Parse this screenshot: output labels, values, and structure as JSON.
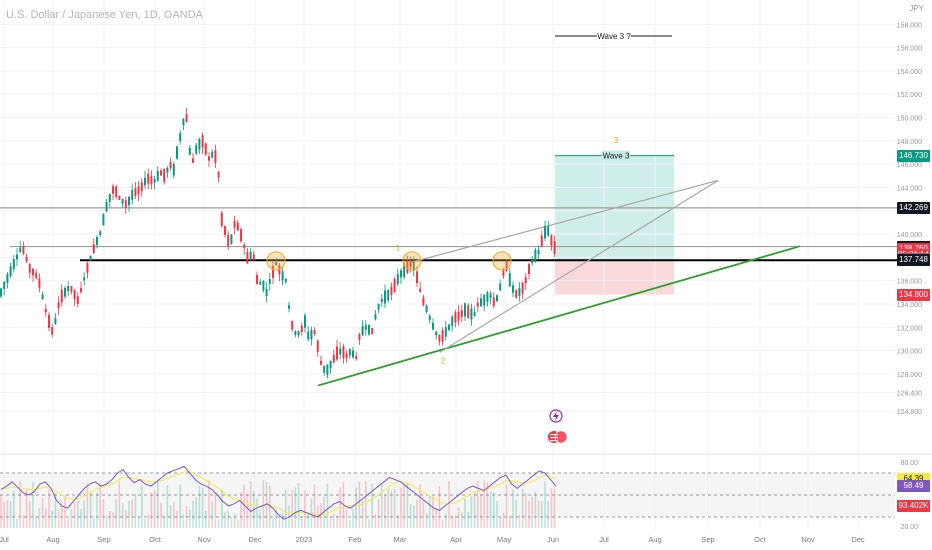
{
  "header": {
    "title": "U.S. Dollar / Japanese Yen, 1D, OANDA",
    "currency": "JPY"
  },
  "price_tags": [
    {
      "label": "146.730",
      "bg": "#089981",
      "fg": "#ffffff",
      "price": 146.73
    },
    {
      "label": "142.269",
      "bg": "#131722",
      "fg": "#ffffff",
      "price": 142.269
    },
    {
      "label": "138.929",
      "bg": "#131722",
      "fg": "#ffffff",
      "price": 138.929
    },
    {
      "label": "138.760",
      "bg": "#f23645",
      "fg": "#ffffff",
      "price": 138.76
    },
    {
      "label": "05:01:14",
      "bg": "#f23645",
      "fg": "#ffffff",
      "price": 138.2
    },
    {
      "label": "137.869",
      "bg": "#787b86",
      "fg": "#ffffff",
      "price": 137.869
    },
    {
      "label": "137.748",
      "bg": "#131722",
      "fg": "#ffffff",
      "price": 137.748
    },
    {
      "label": "134.800",
      "bg": "#f23645",
      "fg": "#ffffff",
      "price": 134.8
    }
  ],
  "rsi_tags": [
    {
      "label": "64.39",
      "bg": "#f5e94a",
      "fg": "#131722",
      "value": 64.39
    },
    {
      "label": "58.49",
      "bg": "#7e57c2",
      "fg": "#ffffff",
      "value": 58.49
    },
    {
      "label": "93.402K",
      "bg": "#f23645",
      "fg": "#ffffff",
      "value": 40
    }
  ],
  "annotations": {
    "wave3_label": "Wave 3",
    "wave3_q_label": "Wave 3 ?",
    "num_1": "1",
    "num_2": "2",
    "num_3": "3"
  },
  "colors": {
    "up": "#089981",
    "down": "#f23645",
    "support": "#2e9e2e",
    "neckline": "#000000",
    "channel": "#a8a8a8",
    "target_zone": "#c8ebe5",
    "stop_zone": "#f9d2d5",
    "marker": "#f5a623",
    "rsi_line": "#7e57c2",
    "rsi_ma": "#f5e94a"
  },
  "icons": [
    "flash-icon",
    "us-flag-icon"
  ],
  "chart_data": {
    "type": "candlestick",
    "title": "U.S. Dollar / Japanese Yen, 1D, OANDA",
    "ylim": [
      122.5,
      158.2
    ],
    "ytick_labels": [
      "124.800",
      "126.400",
      "128.000",
      "130.000",
      "132.000",
      "134.000",
      "136.000",
      "138.000",
      "140.000",
      "142.000",
      "144.000",
      "146.000",
      "148.000",
      "150.000",
      "152.000",
      "154.000",
      "156.000",
      "158.000"
    ],
    "yticks": [
      124.8,
      126.4,
      128.0,
      130.0,
      132.0,
      134.0,
      136.0,
      138.0,
      140.0,
      142.0,
      144.0,
      146.0,
      148.0,
      150.0,
      152.0,
      154.0,
      156.0,
      158.0
    ],
    "x_labels": [
      "Jul",
      "Aug",
      "Sep",
      "Oct",
      "Nov",
      "Dec",
      "2023",
      "Feb",
      "Mar",
      "Apr",
      "May",
      "Jun",
      "Jul",
      "Aug",
      "Sep",
      "Oct",
      "Nov",
      "Dec"
    ],
    "x_label_pos": [
      4,
      53,
      104,
      155,
      204,
      255,
      304,
      355,
      400,
      456,
      504,
      553,
      604,
      655,
      708,
      760,
      808,
      858
    ],
    "price_path": [
      [
        0,
        134.8
      ],
      [
        9,
        136.5
      ],
      [
        22,
        139.0
      ],
      [
        30,
        137.0
      ],
      [
        38,
        136.3
      ],
      [
        47,
        133.0
      ],
      [
        53,
        131.5
      ],
      [
        60,
        134.5
      ],
      [
        70,
        135.5
      ],
      [
        78,
        134.3
      ],
      [
        87,
        137.0
      ],
      [
        94,
        138.8
      ],
      [
        100,
        140.0
      ],
      [
        107,
        142.5
      ],
      [
        114,
        144.0
      ],
      [
        120,
        143.0
      ],
      [
        127,
        142.5
      ],
      [
        133,
        143.5
      ],
      [
        140,
        143.8
      ],
      [
        147,
        144.8
      ],
      [
        154,
        144.5
      ],
      [
        160,
        145.3
      ],
      [
        165,
        145.0
      ],
      [
        170,
        146.0
      ],
      [
        174,
        145.5
      ],
      [
        178,
        147.5
      ],
      [
        182,
        149.0
      ],
      [
        186,
        150.8
      ],
      [
        188,
        148.0
      ],
      [
        192,
        146.0
      ],
      [
        197,
        147.5
      ],
      [
        203,
        148.0
      ],
      [
        209,
        146.5
      ],
      [
        214,
        147.0
      ],
      [
        218,
        146.0
      ],
      [
        221,
        141.5
      ],
      [
        226,
        140.0
      ],
      [
        230,
        139.0
      ],
      [
        235,
        141.0
      ],
      [
        239,
        140.5
      ],
      [
        244,
        139.0
      ],
      [
        248,
        137.8
      ],
      [
        253,
        138.5
      ],
      [
        258,
        135.5
      ],
      [
        262,
        136.0
      ],
      [
        266,
        134.8
      ],
      [
        270,
        136.0
      ],
      [
        276,
        137.5
      ],
      [
        282,
        136.5
      ],
      [
        286,
        136.0
      ],
      [
        290,
        133.0
      ],
      [
        294,
        131.5
      ],
      [
        300,
        131.5
      ],
      [
        305,
        132.5
      ],
      [
        309,
        131.0
      ],
      [
        314,
        131.8
      ],
      [
        318,
        130.3
      ],
      [
        322,
        128.5
      ],
      [
        327,
        128.3
      ],
      [
        332,
        129.0
      ],
      [
        337,
        129.8
      ],
      [
        342,
        130.0
      ],
      [
        347,
        129.5
      ],
      [
        351,
        130.0
      ],
      [
        356,
        129.3
      ],
      [
        360,
        131.5
      ],
      [
        366,
        132.0
      ],
      [
        372,
        131.6
      ],
      [
        377,
        133.5
      ],
      [
        383,
        134.5
      ],
      [
        389,
        134.8
      ],
      [
        394,
        135.5
      ],
      [
        400,
        136.5
      ],
      [
        406,
        137.0
      ],
      [
        410,
        137.5
      ],
      [
        414,
        137.2
      ],
      [
        418,
        136.0
      ],
      [
        422,
        134.5
      ],
      [
        427,
        133.5
      ],
      [
        431,
        132.5
      ],
      [
        436,
        131.5
      ],
      [
        440,
        131.0
      ],
      [
        445,
        131.5
      ],
      [
        449,
        132.0
      ],
      [
        454,
        132.8
      ],
      [
        460,
        133.0
      ],
      [
        465,
        133.5
      ],
      [
        469,
        133.3
      ],
      [
        474,
        133.0
      ],
      [
        478,
        134.0
      ],
      [
        484,
        134.3
      ],
      [
        490,
        134.8
      ],
      [
        495,
        134.0
      ],
      [
        499,
        135.0
      ],
      [
        503,
        136.5
      ],
      [
        506,
        137.5
      ],
      [
        510,
        136.0
      ],
      [
        515,
        134.8
      ],
      [
        519,
        135.0
      ],
      [
        524,
        135.5
      ],
      [
        529,
        137.0
      ],
      [
        534,
        138.0
      ],
      [
        539,
        138.5
      ],
      [
        543,
        139.8
      ],
      [
        547,
        140.5
      ],
      [
        550,
        139.9
      ],
      [
        553,
        139.0
      ],
      [
        556,
        138.7
      ]
    ],
    "lines": [
      {
        "name": "resistance-142",
        "from": [
          0,
          142.25
        ],
        "to": [
          897,
          142.25
        ]
      },
      {
        "name": "upper-zone",
        "from": [
          10,
          138.93
        ],
        "to": [
          897,
          138.93
        ]
      },
      {
        "name": "neckline",
        "from": [
          80,
          137.75
        ],
        "to": [
          897,
          137.75
        ]
      },
      {
        "name": "support-trendline",
        "from": [
          318,
          127.0
        ],
        "to": [
          800,
          138.96
        ]
      },
      {
        "name": "channel-upper",
        "from": [
          410,
          137.55
        ],
        "to": [
          718,
          144.6
        ]
      },
      {
        "name": "channel-lower",
        "from": [
          440,
          129.86
        ],
        "to": [
          718,
          144.6
        ]
      }
    ],
    "zones": [
      {
        "name": "target",
        "x0": 555,
        "x1": 674,
        "from": 137.75,
        "to": 146.73
      },
      {
        "name": "stop",
        "x0": 555,
        "x1": 674,
        "from": 134.8,
        "to": 137.75
      }
    ],
    "wave3_level": 146.73,
    "wave3_q_level": 157.0,
    "markers_x": [
      276,
      412,
      502
    ],
    "markers_price": 137.7
  },
  "rsi": {
    "ylim": [
      20,
      80
    ],
    "ytick_labels": [
      "80.00",
      "20.00"
    ],
    "upper": 70,
    "lower": 30,
    "values": [
      55,
      58,
      62,
      57,
      52,
      50,
      53,
      60,
      62,
      56,
      45,
      40,
      38,
      44,
      50,
      56,
      60,
      62,
      58,
      60,
      64,
      70,
      73,
      66,
      61,
      64,
      60,
      58,
      62,
      66,
      70,
      72,
      74,
      76,
      70,
      64,
      60,
      58,
      55,
      50,
      44,
      40,
      42,
      45,
      40,
      35,
      38,
      40,
      42,
      38,
      32,
      28,
      30,
      34,
      36,
      34,
      32,
      30,
      34,
      38,
      42,
      44,
      40,
      38,
      42,
      46,
      50,
      54,
      58,
      62,
      66,
      64,
      62,
      58,
      54,
      50,
      46,
      42,
      38,
      36,
      40,
      44,
      48,
      52,
      56,
      58,
      56,
      54,
      58,
      62,
      66,
      68,
      60,
      56,
      60,
      64,
      68,
      72,
      70,
      64,
      58
    ],
    "ma_values": [
      56,
      56,
      57,
      57,
      56,
      55,
      55,
      56,
      57,
      56,
      53,
      50,
      47,
      46,
      47,
      49,
      52,
      55,
      57,
      58,
      60,
      63,
      66,
      66,
      65,
      64,
      63,
      62,
      62,
      63,
      65,
      67,
      69,
      71,
      71,
      69,
      66,
      63,
      60,
      57,
      53,
      49,
      46,
      45,
      43,
      41,
      40,
      40,
      41,
      40,
      38,
      35,
      33,
      33,
      34,
      34,
      33,
      32,
      32,
      34,
      36,
      39,
      40,
      40,
      40,
      42,
      44,
      47,
      50,
      54,
      58,
      61,
      62,
      61,
      59,
      56,
      53,
      50,
      47,
      44,
      42,
      42,
      43,
      46,
      49,
      52,
      54,
      55,
      56,
      58,
      60,
      63,
      63,
      62,
      61,
      61,
      63,
      66,
      68,
      67,
      65
    ]
  }
}
